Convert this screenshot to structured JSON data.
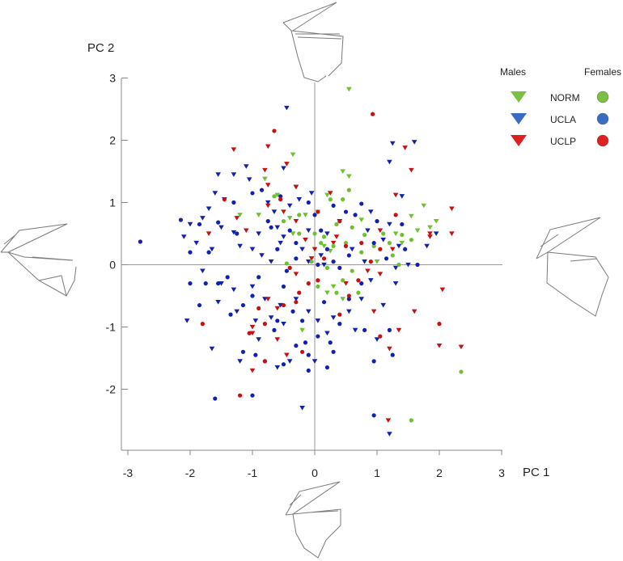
{
  "chart_data": {
    "type": "scatter",
    "xlabel": "PC 1",
    "ylabel": "PC 2",
    "xlim": [
      -3,
      3
    ],
    "ylim": [
      -3,
      3
    ],
    "x_ticks": [
      "-3",
      "-2",
      "-1",
      "0",
      "1",
      "2",
      "3"
    ],
    "y_ticks": [
      "-2",
      "-1",
      "0",
      "1",
      "2",
      "3"
    ],
    "grid": false,
    "legend": {
      "position": "top-right",
      "males_header": "Males",
      "females_header": "Females",
      "groups": [
        {
          "name": "NORM",
          "color": "#7ac143"
        },
        {
          "name": "UCLA",
          "color": "#3a6cc4"
        },
        {
          "name": "UCLP",
          "color": "#e02020"
        }
      ]
    },
    "marker_colors": {
      "NORM": "#6cc12c",
      "UCLA": "#1020b0",
      "UCLP": "#c81010"
    },
    "series": [
      {
        "group": "NORM",
        "sex": "Males",
        "marker": "triangle-down",
        "points": [
          [
            0.55,
            2.82
          ],
          [
            -0.35,
            1.77
          ],
          [
            -0.8,
            1.38
          ],
          [
            -0.6,
            1.12
          ],
          [
            0.45,
            1.5
          ],
          [
            0.55,
            1.42
          ],
          [
            0.2,
            1.12
          ],
          [
            0.05,
            0.85
          ],
          [
            -0.15,
            0.8
          ],
          [
            -0.4,
            0.75
          ],
          [
            -0.9,
            0.8
          ],
          [
            -1.2,
            0.8
          ],
          [
            1.75,
            0.95
          ],
          [
            1.55,
            0.78
          ],
          [
            1.65,
            0.55
          ],
          [
            1.85,
            0.6
          ],
          [
            1.95,
            0.7
          ],
          [
            0.75,
            0.72
          ],
          [
            1.3,
            0.5
          ],
          [
            1.0,
            0.05
          ],
          [
            0.3,
            -0.35
          ],
          [
            0.2,
            -0.45
          ],
          [
            -0.2,
            -1.05
          ],
          [
            0.45,
            -0.55
          ],
          [
            0.15,
            0.3
          ],
          [
            0.25,
            0.22
          ],
          [
            -0.35,
            0.5
          ],
          [
            1.4,
            0.35
          ]
        ]
      },
      {
        "group": "UCLA",
        "sex": "Males",
        "marker": "triangle-down",
        "points": [
          [
            -0.45,
            2.52
          ],
          [
            1.25,
            1.95
          ],
          [
            1.6,
            1.97
          ],
          [
            1.2,
            1.65
          ],
          [
            -0.5,
            1.55
          ],
          [
            -1.1,
            1.58
          ],
          [
            -1.3,
            1.45
          ],
          [
            -1.05,
            1.37
          ],
          [
            -1.55,
            1.45
          ],
          [
            -1.6,
            1.15
          ],
          [
            -1.45,
            1.05
          ],
          [
            -0.75,
            1.0
          ],
          [
            -0.05,
            1.15
          ],
          [
            -0.3,
            1.25
          ],
          [
            -0.4,
            0.95
          ],
          [
            -1.7,
            0.9
          ],
          [
            -1.8,
            0.75
          ],
          [
            -2.0,
            0.65
          ],
          [
            -1.5,
            0.6
          ],
          [
            -1.3,
            0.52
          ],
          [
            -0.9,
            0.5
          ],
          [
            -0.6,
            0.6
          ],
          [
            -0.5,
            0.45
          ],
          [
            -0.1,
            0.55
          ],
          [
            0.2,
            0.5
          ],
          [
            0.4,
            0.7
          ],
          [
            -2.1,
            0.45
          ],
          [
            -1.9,
            0.35
          ],
          [
            -1.65,
            0.25
          ],
          [
            -1.2,
            0.3
          ],
          [
            -1.0,
            0.25
          ],
          [
            -0.85,
            0.15
          ],
          [
            -0.7,
            0.05
          ],
          [
            -0.55,
            0.35
          ],
          [
            -0.2,
            0.25
          ],
          [
            -0.1,
            0.05
          ],
          [
            0.1,
            0.15
          ],
          [
            0.15,
            0.0
          ],
          [
            -1.8,
            -0.1
          ],
          [
            -1.5,
            -0.3
          ],
          [
            -1.3,
            -0.4
          ],
          [
            -1.0,
            -0.35
          ],
          [
            -0.8,
            -0.55
          ],
          [
            -0.55,
            -0.65
          ],
          [
            -0.3,
            -0.55
          ],
          [
            -0.1,
            -0.75
          ],
          [
            0.05,
            -0.9
          ],
          [
            0.2,
            -1.1
          ],
          [
            -1.55,
            -0.6
          ],
          [
            -1.25,
            -0.75
          ],
          [
            -0.95,
            -0.9
          ],
          [
            -0.7,
            -0.85
          ],
          [
            -0.5,
            -0.95
          ],
          [
            -2.05,
            -0.9
          ],
          [
            -1.65,
            -1.35
          ],
          [
            -1.2,
            -1.55
          ],
          [
            -0.9,
            -1.2
          ],
          [
            -0.6,
            -1.65
          ],
          [
            -0.4,
            -1.55
          ],
          [
            0.0,
            -1.55
          ],
          [
            -0.2,
            -2.3
          ],
          [
            0.9,
            0.85
          ],
          [
            1.2,
            0.65
          ],
          [
            1.35,
            0.3
          ],
          [
            1.5,
            0.0
          ],
          [
            1.3,
            -0.3
          ],
          [
            1.1,
            -0.65
          ],
          [
            1.4,
            1.1
          ],
          [
            1.8,
            0.3
          ],
          [
            1.95,
            0.5
          ],
          [
            0.6,
            0.25
          ],
          [
            0.8,
            0.05
          ],
          [
            1.1,
            0.4
          ],
          [
            0.9,
            -0.25
          ],
          [
            0.75,
            -0.55
          ],
          [
            0.55,
            -0.75
          ],
          [
            0.65,
            -1.05
          ],
          [
            0.3,
            -0.85
          ],
          [
            1.2,
            -2.72
          ],
          [
            1.0,
            -1.2
          ],
          [
            -0.25,
            1.05
          ],
          [
            -0.65,
            0.85
          ],
          [
            1.3,
            -0.05
          ],
          [
            0.85,
            0.55
          ]
        ]
      },
      {
        "group": "UCLP",
        "sex": "Males",
        "marker": "triangle-down",
        "points": [
          [
            -1.3,
            1.85
          ],
          [
            -0.75,
            1.9
          ],
          [
            -0.8,
            1.52
          ],
          [
            -0.45,
            1.62
          ],
          [
            -0.75,
            1.28
          ],
          [
            1.45,
            1.88
          ],
          [
            1.55,
            1.52
          ],
          [
            -0.3,
            1.25
          ],
          [
            1.3,
            1.12
          ],
          [
            0.25,
            1.15
          ],
          [
            -1.7,
            0.5
          ],
          [
            -1.25,
            0.75
          ],
          [
            -0.75,
            0.95
          ],
          [
            -0.5,
            0.85
          ],
          [
            -0.3,
            0.7
          ],
          [
            1.85,
            0.45
          ],
          [
            2.2,
            0.9
          ],
          [
            2.2,
            0.5
          ],
          [
            1.85,
            0.5
          ],
          [
            0.3,
            0.35
          ],
          [
            0.0,
            0.25
          ],
          [
            -0.15,
            0.4
          ],
          [
            1.05,
            0.55
          ],
          [
            1.25,
            0.25
          ],
          [
            0.85,
            -0.1
          ],
          [
            1.05,
            -0.15
          ],
          [
            0.5,
            -0.3
          ],
          [
            0.95,
            -0.75
          ],
          [
            1.6,
            -0.75
          ],
          [
            1.35,
            -1.05
          ],
          [
            1.2,
            -1.35
          ],
          [
            2.05,
            -0.4
          ],
          [
            2.0,
            -1.3
          ],
          [
            2.35,
            -1.32
          ],
          [
            -0.6,
            -0.7
          ],
          [
            -0.45,
            -1.45
          ],
          [
            -0.3,
            -0.15
          ],
          [
            -1.0,
            -1.0
          ],
          [
            -1.0,
            -1.7
          ],
          [
            -0.6,
            -1.2
          ],
          [
            -1.0,
            -1.1
          ],
          [
            1.18,
            -2.5
          ],
          [
            -1.1,
            0.55
          ],
          [
            0.35,
            0.45
          ],
          [
            -0.75,
            -0.55
          ],
          [
            -0.05,
            0.1
          ]
        ]
      },
      {
        "group": "NORM",
        "sex": "Females",
        "marker": "circle",
        "points": [
          [
            0.55,
            1.2
          ],
          [
            0.45,
            1.05
          ],
          [
            0.25,
            1.05
          ],
          [
            -0.65,
            1.1
          ],
          [
            -0.5,
            0.7
          ],
          [
            -0.25,
            0.5
          ],
          [
            0.0,
            0.5
          ],
          [
            0.15,
            0.45
          ],
          [
            0.3,
            0.3
          ],
          [
            0.6,
            0.6
          ],
          [
            0.8,
            0.48
          ],
          [
            1.1,
            0.5
          ],
          [
            1.2,
            0.35
          ],
          [
            1.4,
            0.48
          ],
          [
            1.55,
            0.4
          ],
          [
            -0.45,
            0.02
          ],
          [
            -0.05,
            0.05
          ],
          [
            0.2,
            -0.05
          ],
          [
            0.45,
            -0.25
          ],
          [
            0.7,
            -0.45
          ],
          [
            0.5,
            0.35
          ],
          [
            0.75,
            0.2
          ],
          [
            0.95,
            0.3
          ],
          [
            1.25,
            0.15
          ],
          [
            1.35,
            0.0
          ],
          [
            0.35,
            -0.45
          ],
          [
            0.05,
            -0.35
          ],
          [
            2.35,
            -1.72
          ],
          [
            1.55,
            -2.5
          ],
          [
            0.6,
            -0.1
          ],
          [
            -0.25,
            0.8
          ],
          [
            0.35,
            0.65
          ],
          [
            0.1,
            0.35
          ]
        ]
      },
      {
        "group": "UCLA",
        "sex": "Females",
        "marker": "circle",
        "points": [
          [
            -2.8,
            0.37
          ],
          [
            -1.55,
            -0.3
          ],
          [
            -1.85,
            -0.65
          ],
          [
            -1.15,
            -0.65
          ],
          [
            -1.0,
            -0.5
          ],
          [
            -0.5,
            -0.35
          ],
          [
            -0.35,
            -0.75
          ],
          [
            -0.2,
            -0.9
          ],
          [
            0.05,
            -1.15
          ],
          [
            -1.6,
            -2.15
          ],
          [
            -1.0,
            -2.1
          ],
          [
            -1.15,
            -1.4
          ],
          [
            -0.8,
            -1.55
          ],
          [
            -0.5,
            -1.6
          ],
          [
            -0.3,
            -1.3
          ],
          [
            -0.1,
            -1.45
          ],
          [
            0.2,
            -1.65
          ],
          [
            0.25,
            -1.25
          ],
          [
            0.15,
            -0.6
          ],
          [
            0.4,
            -0.95
          ],
          [
            0.8,
            -1.05
          ],
          [
            0.95,
            -1.55
          ],
          [
            1.25,
            -1.45
          ],
          [
            1.2,
            -1.05
          ],
          [
            0.95,
            -2.42
          ],
          [
            -1.25,
            0.5
          ],
          [
            -0.7,
            0.6
          ],
          [
            -0.4,
            0.55
          ],
          [
            -0.6,
            0.25
          ],
          [
            -0.3,
            0.1
          ],
          [
            0.1,
            0.55
          ],
          [
            0.3,
            0.05
          ],
          [
            0.55,
            0.15
          ],
          [
            -2.0,
            0.2
          ],
          [
            -2.15,
            0.72
          ],
          [
            -1.3,
            1.0
          ],
          [
            -1.55,
            0.68
          ],
          [
            -1.0,
            1.15
          ],
          [
            -0.55,
            1.1
          ],
          [
            -0.75,
            0.7
          ],
          [
            -0.1,
            1.0
          ],
          [
            0.3,
            0.95
          ],
          [
            0.5,
            0.85
          ],
          [
            0.75,
            0.98
          ],
          [
            0.95,
            0.35
          ],
          [
            1.15,
            0.1
          ],
          [
            0.75,
            -0.3
          ],
          [
            0.55,
            -0.55
          ],
          [
            1.65,
            0.0
          ],
          [
            1.45,
            0.25
          ],
          [
            0.2,
            0.25
          ],
          [
            0.0,
            0.8
          ],
          [
            -0.9,
            -0.2
          ],
          [
            -1.4,
            -0.2
          ],
          [
            -0.85,
            1.2
          ],
          [
            -1.7,
            0.2
          ],
          [
            0.65,
            0.8
          ],
          [
            0.3,
            -1.4
          ],
          [
            1.4,
            0.65
          ],
          [
            -0.1,
            -1.7
          ],
          [
            0.05,
            0.0
          ],
          [
            -0.3,
            0.35
          ],
          [
            -1.35,
            -0.8
          ],
          [
            -0.65,
            -1.05
          ],
          [
            -0.15,
            -1.25
          ],
          [
            -1.85,
            0.65
          ],
          [
            -1.75,
            -0.3
          ],
          [
            0.4,
            -0.05
          ],
          [
            1.0,
            0.7
          ],
          [
            -0.45,
            -0.1
          ],
          [
            -0.95,
            -1.45
          ],
          [
            -0.6,
            -0.9
          ],
          [
            -2.0,
            -0.3
          ]
        ]
      },
      {
        "group": "UCLP",
        "sex": "Females",
        "marker": "circle",
        "points": [
          [
            0.93,
            2.42
          ],
          [
            -0.65,
            2.15
          ],
          [
            -1.45,
            1.05
          ],
          [
            -0.55,
            1.05
          ],
          [
            0.05,
            0.85
          ],
          [
            0.4,
            0.7
          ],
          [
            0.75,
            0.35
          ],
          [
            1.05,
            0.25
          ],
          [
            0.9,
            0.05
          ],
          [
            0.4,
            -0.8
          ],
          [
            0.7,
            -0.25
          ],
          [
            0.05,
            -0.25
          ],
          [
            -0.5,
            -0.65
          ],
          [
            -0.8,
            -0.95
          ],
          [
            -1.05,
            -1.1
          ],
          [
            -1.8,
            -0.95
          ],
          [
            -1.2,
            -2.1
          ],
          [
            -0.25,
            -0.45
          ],
          [
            -0.2,
            -1.4
          ],
          [
            0.55,
            -0.5
          ],
          [
            2.0,
            -0.95
          ],
          [
            1.05,
            -1.15
          ],
          [
            -0.9,
            -0.7
          ],
          [
            -0.3,
            -0.6
          ],
          [
            0.15,
            0.1
          ],
          [
            1.3,
            0.8
          ],
          [
            -0.4,
            -0.05
          ],
          [
            -0.8,
            -1.55
          ],
          [
            0.5,
            0.3
          ],
          [
            -0.1,
            -0.3
          ]
        ]
      }
    ]
  }
}
